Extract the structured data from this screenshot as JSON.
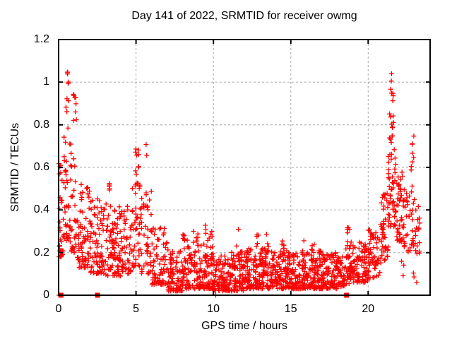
{
  "chart_data": {
    "type": "scatter",
    "title": "Day 141 of 2022, SRMTID for receiver owmg",
    "xlabel": "GPS time / hours",
    "ylabel": "SRMTID / TECUs",
    "xlim": [
      0,
      24
    ],
    "ylim": [
      0,
      1.2
    ],
    "xticks": [
      0,
      5,
      10,
      15,
      20
    ],
    "xtick_labels": [
      "0",
      "5",
      "10",
      "15",
      "20"
    ],
    "yticks": [
      0,
      0.2,
      0.4,
      0.6,
      0.8,
      1.0,
      1.2
    ],
    "ytick_labels": [
      "0",
      "0.2",
      "0.4",
      "0.6",
      "0.8",
      "1",
      "1.2"
    ],
    "grid": true,
    "legend": false,
    "marker": "plus",
    "marker_color": "#ff0000",
    "grid_color": "#a6a6a6",
    "axis_color": "#000000",
    "background": "#ffffff",
    "series": [
      {
        "name": "SRMTID",
        "generator": {
          "seed": 141,
          "note": "bins approximate the dense scatter: [x_start, x_end, n_points, y_min, y_max, low_bias_exponent]",
          "bins": [
            [
              0.02,
              0.3,
              28,
              0.18,
              0.62,
              2.0
            ],
            [
              0.05,
              0.25,
              4,
              0.55,
              0.62,
              1.0
            ],
            [
              0.3,
              0.8,
              42,
              0.25,
              0.75,
              1.8
            ],
            [
              0.45,
              0.65,
              10,
              0.78,
              1.06,
              1.0
            ],
            [
              0.8,
              1.2,
              30,
              0.2,
              0.7,
              1.8
            ],
            [
              0.95,
              1.15,
              8,
              0.82,
              0.96,
              1.0
            ],
            [
              1.2,
              2.0,
              70,
              0.13,
              0.52,
              1.6
            ],
            [
              2.0,
              3.0,
              85,
              0.1,
              0.46,
              1.6
            ],
            [
              3.0,
              4.0,
              85,
              0.09,
              0.43,
              1.5
            ],
            [
              3.25,
              3.42,
              6,
              0.4,
              0.56,
              1.0
            ],
            [
              4.0,
              4.7,
              50,
              0.1,
              0.45,
              1.5
            ],
            [
              4.7,
              5.3,
              42,
              0.13,
              0.52,
              1.3
            ],
            [
              4.9,
              5.18,
              12,
              0.52,
              0.7,
              1.0
            ],
            [
              5.3,
              6.0,
              45,
              0.1,
              0.5,
              1.6
            ],
            [
              5.62,
              5.78,
              2,
              0.6,
              0.73,
              1.0
            ],
            [
              6.0,
              7.0,
              70,
              0.05,
              0.33,
              1.8
            ],
            [
              7.0,
              8.0,
              85,
              0.02,
              0.24,
              1.8
            ],
            [
              8.0,
              9.0,
              85,
              0.03,
              0.3,
              2.0
            ],
            [
              9.0,
              10.0,
              85,
              0.03,
              0.24,
              1.8
            ],
            [
              9.35,
              9.95,
              14,
              0.17,
              0.33,
              1.2
            ],
            [
              10.0,
              11.0,
              90,
              0.02,
              0.19,
              1.6
            ],
            [
              11.0,
              12.0,
              95,
              0.02,
              0.21,
              1.7
            ],
            [
              11.45,
              11.62,
              4,
              0.18,
              0.31,
              1.0
            ],
            [
              12.0,
              13.0,
              95,
              0.03,
              0.22,
              1.7
            ],
            [
              12.7,
              12.92,
              5,
              0.19,
              0.33,
              1.0
            ],
            [
              13.0,
              14.0,
              95,
              0.03,
              0.22,
              1.7
            ],
            [
              13.4,
              13.62,
              6,
              0.17,
              0.3,
              1.0
            ],
            [
              14.0,
              15.0,
              90,
              0.03,
              0.21,
              1.7
            ],
            [
              14.38,
              14.6,
              6,
              0.16,
              0.27,
              1.0
            ],
            [
              15.0,
              16.0,
              90,
              0.03,
              0.2,
              1.7
            ],
            [
              15.68,
              15.9,
              5,
              0.15,
              0.26,
              1.0
            ],
            [
              16.0,
              17.0,
              90,
              0.03,
              0.22,
              1.7
            ],
            [
              16.3,
              16.52,
              6,
              0.16,
              0.28,
              1.0
            ],
            [
              17.0,
              18.0,
              90,
              0.03,
              0.2,
              1.7
            ],
            [
              18.0,
              18.5,
              40,
              0.04,
              0.18,
              1.5
            ],
            [
              18.5,
              19.0,
              42,
              0.05,
              0.26,
              1.4
            ],
            [
              18.58,
              18.82,
              6,
              0.22,
              0.33,
              1.0
            ],
            [
              19.0,
              20.0,
              85,
              0.06,
              0.25,
              1.5
            ],
            [
              20.0,
              20.8,
              55,
              0.08,
              0.33,
              1.4
            ],
            [
              20.8,
              21.3,
              45,
              0.15,
              0.5,
              1.3
            ],
            [
              21.3,
              21.8,
              50,
              0.3,
              0.72,
              1.2
            ],
            [
              21.35,
              21.65,
              12,
              0.72,
              0.92,
              1.0
            ],
            [
              21.45,
              21.62,
              6,
              0.93,
              1.06,
              1.0
            ],
            [
              21.8,
              22.3,
              45,
              0.25,
              0.58,
              1.4
            ],
            [
              22.08,
              22.3,
              3,
              0.09,
              0.16,
              1.0
            ],
            [
              22.3,
              23.0,
              38,
              0.2,
              0.52,
              1.3
            ],
            [
              22.75,
              22.97,
              8,
              0.55,
              0.75,
              1.0
            ],
            [
              23.0,
              23.4,
              18,
              0.18,
              0.42,
              1.2
            ],
            [
              22.9,
              23.15,
              3,
              0.06,
              0.12,
              1.0
            ]
          ]
        },
        "extra_points": [
          [
            0.02,
            0.0
          ],
          [
            10.15,
            0.0
          ]
        ]
      }
    ],
    "flag_markers": {
      "shape": "filled-square",
      "color": "#ff0000",
      "points": [
        [
          0.15,
          0
        ],
        [
          2.51,
          0
        ],
        [
          18.6,
          0
        ]
      ]
    }
  }
}
